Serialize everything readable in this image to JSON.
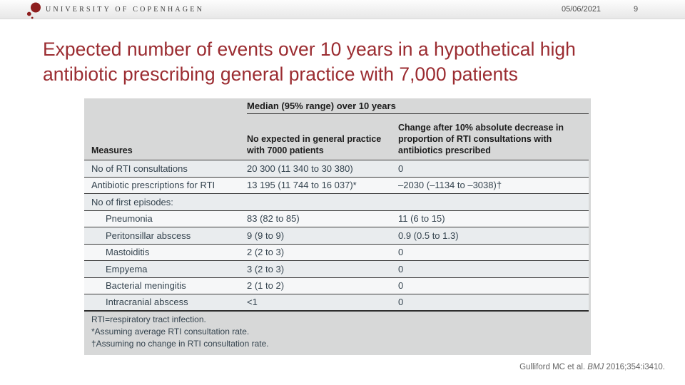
{
  "header": {
    "logo_text": "UNIVERSITY OF COPENHAGEN",
    "date": "05/06/2021",
    "page_number": "9"
  },
  "title": {
    "line1": "Expected number of events over 10 years in a hypothetical high",
    "line2": "antibiotic prescribing general practice with 7,000 patients"
  },
  "table": {
    "span_header": "Median (95% range) over 10 years",
    "columns": [
      "Measures",
      "No expected in general practice with 7000 patients",
      "Change after 10% absolute decrease in proportion of RTI consultations with antibiotics prescribed"
    ],
    "rows": [
      {
        "label": "No of RTI consultations",
        "col2": "20 300 (11 340 to 30 380)",
        "col3": "0",
        "indent": false
      },
      {
        "label": "Antibiotic prescriptions for RTI",
        "col2": "13 195 (11 744 to 16 037)*",
        "col3": "–2030 (–1134 to –3038)†",
        "indent": false
      },
      {
        "label": "No of first episodes:",
        "col2": "",
        "col3": "",
        "indent": false
      },
      {
        "label": "Pneumonia",
        "col2": "83 (82 to 85)",
        "col3": "11 (6 to 15)",
        "indent": true
      },
      {
        "label": "Peritonsillar abscess",
        "col2": "9 (9 to 9)",
        "col3": "0.9 (0.5 to 1.3)",
        "indent": true
      },
      {
        "label": "Mastoiditis",
        "col2": "2 (2 to 3)",
        "col3": "0",
        "indent": true
      },
      {
        "label": "Empyema",
        "col2": "3 (2 to 3)",
        "col3": "0",
        "indent": true
      },
      {
        "label": "Bacterial meningitis",
        "col2": "2 (1 to 2)",
        "col3": "0",
        "indent": true
      },
      {
        "label": "Intracranial abscess",
        "col2": "<1",
        "col3": "0",
        "indent": true
      }
    ],
    "footnotes": [
      "RTI=respiratory tract infection.",
      "*Assuming average RTI consultation rate.",
      "†Assuming no change in RTI consultation rate."
    ]
  },
  "citation": {
    "prefix": "Gulliford MC et al. ",
    "journal": "BMJ",
    "suffix": " 2016;354:i3410."
  },
  "colors": {
    "title_red": "#9b2c31",
    "logo_red": "#8e1f1f",
    "panel_bg": "#d7d8d8",
    "table_text": "#35444f",
    "rule": "#3b3b3b"
  }
}
